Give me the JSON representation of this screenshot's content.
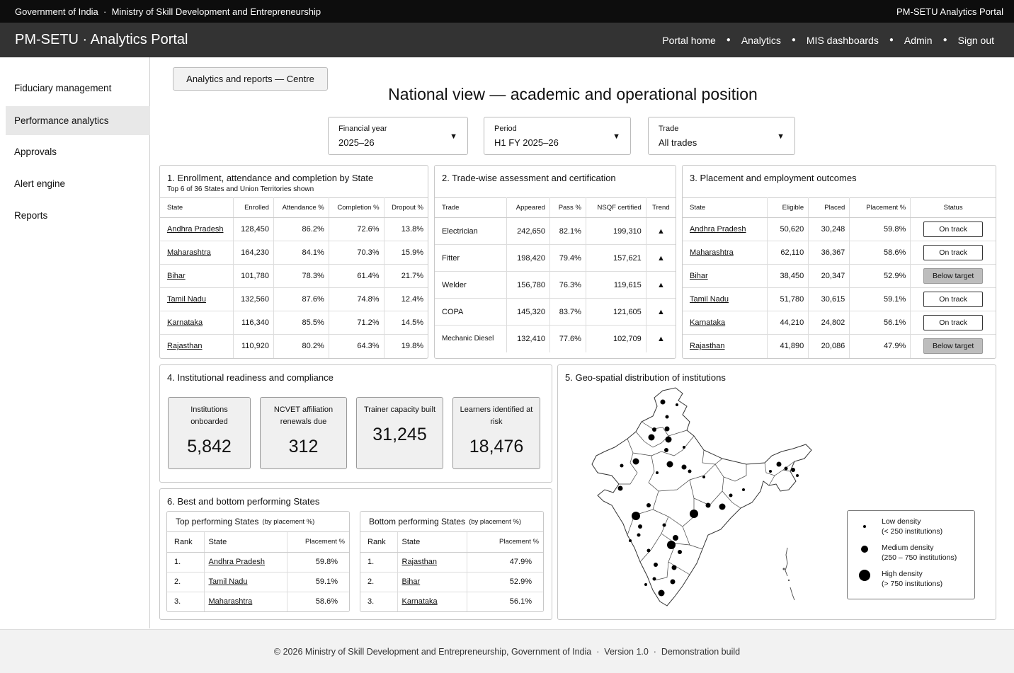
{
  "topbar": {
    "left": "Government of India  ·  Ministry of Skill Development and Entrepreneurship",
    "right": "PM-SETU Analytics Portal"
  },
  "header": {
    "brand": "PM-SETU · Analytics Portal",
    "nav": [
      "Portal home",
      "Analytics",
      "MIS dashboards",
      "Admin",
      "Sign out"
    ]
  },
  "sidebar": {
    "items": [
      "Fiduciary management",
      "Performance analytics",
      "Approvals",
      "Alert engine",
      "Reports"
    ],
    "active": "Performance analytics"
  },
  "breadcrumb": "Analytics and reports — Centre",
  "page_title": "National view — academic and operational position",
  "filters": [
    {
      "label": "Financial year",
      "value": "2025–26"
    },
    {
      "label": "Period",
      "value": "H1 FY 2025–26"
    },
    {
      "label": "Trade",
      "value": "All trades"
    }
  ],
  "enrollment": {
    "title": "1.  Enrollment, attendance and completion by State",
    "subtitle": "Top 6 of 36 States and Union Territories shown",
    "columns": [
      "State",
      "Enrolled",
      "Attendance %",
      "Completion %",
      "Dropout %"
    ],
    "rows": [
      [
        "Andhra Pradesh",
        "128,450",
        "86.2%",
        "72.6%",
        "13.8%"
      ],
      [
        "Maharashtra",
        "164,230",
        "84.1%",
        "70.3%",
        "15.9%"
      ],
      [
        "Bihar",
        "101,780",
        "78.3%",
        "61.4%",
        "21.7%"
      ],
      [
        "Tamil Nadu",
        "132,560",
        "87.6%",
        "74.8%",
        "12.4%"
      ],
      [
        "Karnataka",
        "116,340",
        "85.5%",
        "71.2%",
        "14.5%"
      ],
      [
        "Rajasthan",
        "110,920",
        "80.2%",
        "64.3%",
        "19.8%"
      ]
    ]
  },
  "trades": {
    "title": "2.  Trade-wise assessment and certification",
    "columns": [
      "Trade",
      "Appeared",
      "Pass %",
      "NSQF certified",
      "Trend"
    ],
    "rows": [
      [
        "Electrician",
        "242,650",
        "82.1%",
        "199,310",
        "▲"
      ],
      [
        "Fitter",
        "198,420",
        "79.4%",
        "157,621",
        "▲"
      ],
      [
        "Welder",
        "156,780",
        "76.3%",
        "119,615",
        "▲"
      ],
      [
        "COPA",
        "145,320",
        "83.7%",
        "121,605",
        "▲"
      ],
      [
        "Mechanic Diesel",
        "132,410",
        "77.6%",
        "102,709",
        "▲"
      ]
    ]
  },
  "placement": {
    "title": "3.  Placement and employment outcomes",
    "columns": [
      "State",
      "Eligible",
      "Placed",
      "Placement %",
      "Status"
    ],
    "rows": [
      [
        "Andhra Pradesh",
        "50,620",
        "30,248",
        "59.8%",
        "On track"
      ],
      [
        "Maharashtra",
        "62,110",
        "36,367",
        "58.6%",
        "On track"
      ],
      [
        "Bihar",
        "38,450",
        "20,347",
        "52.9%",
        "Below target"
      ],
      [
        "Tamil Nadu",
        "51,780",
        "30,615",
        "59.1%",
        "On track"
      ],
      [
        "Karnataka",
        "44,210",
        "24,802",
        "56.1%",
        "On track"
      ],
      [
        "Rajasthan",
        "41,890",
        "20,086",
        "47.9%",
        "Below target"
      ]
    ]
  },
  "readiness": {
    "title": "4.  Institutional readiness and compliance",
    "kpis": [
      {
        "label": "Institutions onboarded",
        "value": "5,842"
      },
      {
        "label": "NCVET affiliation renewals due",
        "value": "312"
      },
      {
        "label": "Trainer capacity built",
        "value": "31,245"
      },
      {
        "label": "Learners identified at risk",
        "value": "18,476"
      }
    ]
  },
  "geo": {
    "title": "5.  Geo-spatial distribution of institutions",
    "legend": [
      {
        "label": "Low density",
        "detail": "(< 250 institutions)"
      },
      {
        "label": "Medium density",
        "detail": "(250 – 750 institutions)"
      },
      {
        "label": "High density",
        "detail": "(> 750 institutions)"
      }
    ]
  },
  "ranking": {
    "title": "6.  Best and bottom performing States",
    "top": {
      "title": "Top performing States",
      "qualifier": "(by placement %)",
      "columns": [
        "Rank",
        "State",
        "Placement %"
      ],
      "rows": [
        [
          "1.",
          "Andhra Pradesh",
          "59.8%"
        ],
        [
          "2.",
          "Tamil Nadu",
          "59.1%"
        ],
        [
          "3.",
          "Maharashtra",
          "58.6%"
        ]
      ]
    },
    "bottom": {
      "title": "Bottom performing States",
      "qualifier": "(by placement %)",
      "columns": [
        "Rank",
        "State",
        "Placement %"
      ],
      "rows": [
        [
          "1.",
          "Rajasthan",
          "47.9%"
        ],
        [
          "2.",
          "Bihar",
          "52.9%"
        ],
        [
          "3.",
          "Karnataka",
          "56.1%"
        ]
      ]
    }
  },
  "footer": "© 2026 Ministry of Skill Development and Entrepreneurship, Government of India  ·  Version 1.0  ·  Demonstration build"
}
